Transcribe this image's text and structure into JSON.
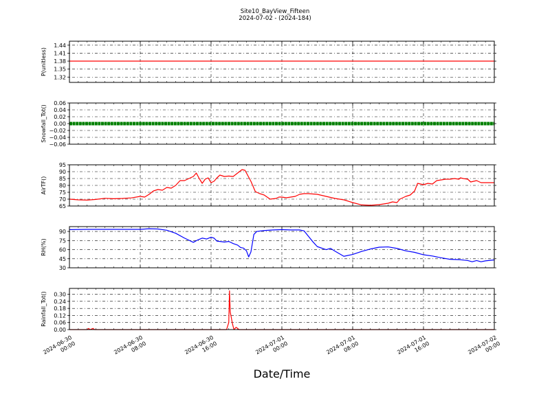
{
  "chart_data": {
    "type": "line",
    "title": "Site10_BayView_Fifteen",
    "subtitle": "2024-07-02 - (2024-184)",
    "xlabel": "Date/Time",
    "grid": true,
    "x_ticks": [
      {
        "value": "2024-06-30 00:00",
        "line1": "2024-06-30",
        "line2": "00:00"
      },
      {
        "value": "2024-06-30 08:00",
        "line1": "2024-06-30",
        "line2": "08:00"
      },
      {
        "value": "2024-06-30 16:00",
        "line1": "2024-06-30",
        "line2": "16:00"
      },
      {
        "value": "2024-07-01 00:00",
        "line1": "2024-07-01",
        "line2": "00:00"
      },
      {
        "value": "2024-07-01 08:00",
        "line1": "2024-07-01",
        "line2": "08:00"
      },
      {
        "value": "2024-07-01 16:00",
        "line1": "2024-07-01",
        "line2": "16:00"
      },
      {
        "value": "2024-07-02 00:00",
        "line1": "2024-07-02",
        "line2": "00:00"
      }
    ],
    "xlim": [
      "2024-06-30 00:00",
      "2024-07-02 00:00"
    ],
    "panels": [
      {
        "ylabel": "P(unitless)",
        "ylim": [
          1.3,
          1.455
        ],
        "yticks": [
          "1.44",
          "1.41",
          "1.38",
          "1.35",
          "1.32"
        ],
        "color": "#ff0000",
        "marker": "line",
        "points": [
          [
            "2024-06-30 00:00",
            1.38
          ],
          [
            "2024-07-02 00:00",
            1.38
          ]
        ]
      },
      {
        "ylabel": "Snowfall_Tot()",
        "ylim": [
          -0.06,
          0.06
        ],
        "yticks": [
          "0.06",
          "0.04",
          "0.02",
          "0.00",
          "−0.02",
          "−0.04",
          "−0.06"
        ],
        "color": "#008000",
        "marker": "dots",
        "points": [
          [
            "2024-06-30 00:00",
            0.0
          ],
          [
            "2024-07-02 00:00",
            0.0
          ]
        ]
      },
      {
        "ylabel": "AirTF()",
        "ylim": [
          65,
          95
        ],
        "yticks": [
          "95",
          "90",
          "85",
          "80",
          "75",
          "70",
          "65"
        ],
        "color": "#ff0000",
        "marker": "line",
        "points": [
          [
            "2024-06-30 00:00",
            70.0
          ],
          [
            "2024-06-30 01:00",
            69.5
          ],
          [
            "2024-06-30 02:00",
            69.3
          ],
          [
            "2024-06-30 03:00",
            69.8
          ],
          [
            "2024-06-30 04:00",
            70.6
          ],
          [
            "2024-06-30 05:00",
            70.3
          ],
          [
            "2024-06-30 06:00",
            70.5
          ],
          [
            "2024-06-30 07:00",
            70.9
          ],
          [
            "2024-06-30 08:00",
            72.0
          ],
          [
            "2024-06-30 08:30",
            71.5
          ],
          [
            "2024-06-30 09:00",
            73.5
          ],
          [
            "2024-06-30 09:30",
            76.0
          ],
          [
            "2024-06-30 10:00",
            77.0
          ],
          [
            "2024-06-30 10:30",
            76.5
          ],
          [
            "2024-06-30 11:00",
            78.5
          ],
          [
            "2024-06-30 11:30",
            78.0
          ],
          [
            "2024-06-30 12:00",
            80.0
          ],
          [
            "2024-06-30 12:30",
            83.5
          ],
          [
            "2024-06-30 13:00",
            83.5
          ],
          [
            "2024-06-30 13:30",
            85.0
          ],
          [
            "2024-06-30 14:00",
            86.5
          ],
          [
            "2024-06-30 14:20",
            89.0
          ],
          [
            "2024-06-30 14:40",
            85.0
          ],
          [
            "2024-06-30 15:00",
            81.5
          ],
          [
            "2024-06-30 15:20",
            84.5
          ],
          [
            "2024-06-30 15:40",
            85.5
          ],
          [
            "2024-06-30 16:00",
            82.0
          ],
          [
            "2024-06-30 16:20",
            83.0
          ],
          [
            "2024-06-30 16:40",
            85.5
          ],
          [
            "2024-06-30 17:00",
            87.5
          ],
          [
            "2024-06-30 17:30",
            86.5
          ],
          [
            "2024-06-30 18:00",
            86.8
          ],
          [
            "2024-06-30 18:30",
            86.5
          ],
          [
            "2024-06-30 19:00",
            89.0
          ],
          [
            "2024-06-30 19:30",
            91.5
          ],
          [
            "2024-06-30 19:50",
            91.0
          ],
          [
            "2024-06-30 20:10",
            87.0
          ],
          [
            "2024-06-30 20:30",
            83.0
          ],
          [
            "2024-06-30 21:00",
            75.5
          ],
          [
            "2024-06-30 21:30",
            74.0
          ],
          [
            "2024-06-30 22:00",
            73.0
          ],
          [
            "2024-06-30 22:20",
            71.5
          ],
          [
            "2024-06-30 22:40",
            70.0
          ],
          [
            "2024-06-30 23:20",
            70.5
          ],
          [
            "2024-06-30 23:40",
            71.5
          ],
          [
            "2024-07-01 00:00",
            71.5
          ],
          [
            "2024-07-01 00:30",
            71.0
          ],
          [
            "2024-07-01 01:00",
            71.5
          ],
          [
            "2024-07-01 01:30",
            72.0
          ],
          [
            "2024-07-01 02:00",
            73.5
          ],
          [
            "2024-07-01 02:30",
            74.0
          ],
          [
            "2024-07-01 03:00",
            74.0
          ],
          [
            "2024-07-01 04:00",
            73.5
          ],
          [
            "2024-07-01 05:00",
            72.0
          ],
          [
            "2024-07-01 06:00",
            70.5
          ],
          [
            "2024-07-01 07:00",
            69.5
          ],
          [
            "2024-07-01 08:00",
            67.5
          ],
          [
            "2024-07-01 09:00",
            65.8
          ],
          [
            "2024-07-01 10:00",
            65.5
          ],
          [
            "2024-07-01 11:00",
            66.0
          ],
          [
            "2024-07-01 12:00",
            67.0
          ],
          [
            "2024-07-01 12:30",
            68.0
          ],
          [
            "2024-07-01 13:00",
            67.5
          ],
          [
            "2024-07-01 13:20",
            70.0
          ],
          [
            "2024-07-01 14:00",
            72.0
          ],
          [
            "2024-07-01 14:30",
            73.0
          ],
          [
            "2024-07-01 15:00",
            76.0
          ],
          [
            "2024-07-01 15:20",
            81.5
          ],
          [
            "2024-07-01 15:40",
            81.0
          ],
          [
            "2024-07-01 16:00",
            80.5
          ],
          [
            "2024-07-01 16:30",
            81.5
          ],
          [
            "2024-07-01 17:00",
            81.0
          ],
          [
            "2024-07-01 17:30",
            83.5
          ],
          [
            "2024-07-01 18:00",
            84.0
          ],
          [
            "2024-07-01 18:30",
            84.5
          ],
          [
            "2024-07-01 19:00",
            84.5
          ],
          [
            "2024-07-01 19:30",
            85.0
          ],
          [
            "2024-07-01 20:00",
            84.5
          ],
          [
            "2024-07-01 20:10",
            85.5
          ],
          [
            "2024-07-01 20:30",
            85.0
          ],
          [
            "2024-07-01 21:00",
            84.5
          ],
          [
            "2024-07-01 21:20",
            82.5
          ],
          [
            "2024-07-01 22:00",
            83.5
          ],
          [
            "2024-07-01 22:30",
            82.0
          ],
          [
            "2024-07-01 23:00",
            82.0
          ],
          [
            "2024-07-02 00:00",
            82.0
          ]
        ]
      },
      {
        "ylabel": "RH(%)",
        "ylim": [
          30,
          98
        ],
        "yticks": [
          "90",
          "75",
          "60",
          "45",
          "30"
        ],
        "color": "#0000ff",
        "marker": "line",
        "points": [
          [
            "2024-06-30 00:00",
            93.0
          ],
          [
            "2024-06-30 02:00",
            93.5
          ],
          [
            "2024-06-30 04:00",
            93.5
          ],
          [
            "2024-06-30 06:00",
            93.5
          ],
          [
            "2024-06-30 08:00",
            93.5
          ],
          [
            "2024-06-30 09:00",
            94.5
          ],
          [
            "2024-06-30 10:00",
            94.0
          ],
          [
            "2024-06-30 11:00",
            92.0
          ],
          [
            "2024-06-30 12:00",
            87.0
          ],
          [
            "2024-06-30 13:00",
            79.0
          ],
          [
            "2024-06-30 14:00",
            72.0
          ],
          [
            "2024-06-30 14:30",
            76.0
          ],
          [
            "2024-06-30 15:00",
            79.0
          ],
          [
            "2024-06-30 15:30",
            77.5
          ],
          [
            "2024-06-30 16:00",
            80.5
          ],
          [
            "2024-06-30 16:20",
            79.0
          ],
          [
            "2024-06-30 16:40",
            74.0
          ],
          [
            "2024-06-30 17:00",
            73.5
          ],
          [
            "2024-06-30 17:30",
            72.5
          ],
          [
            "2024-06-30 18:00",
            73.5
          ],
          [
            "2024-06-30 18:30",
            70.0
          ],
          [
            "2024-06-30 19:00",
            67.5
          ],
          [
            "2024-06-30 19:20",
            63.5
          ],
          [
            "2024-06-30 19:40",
            62.5
          ],
          [
            "2024-06-30 20:00",
            58.0
          ],
          [
            "2024-06-30 20:15",
            48.0
          ],
          [
            "2024-06-30 20:30",
            56.0
          ],
          [
            "2024-06-30 20:50",
            85.0
          ],
          [
            "2024-06-30 21:10",
            90.0
          ],
          [
            "2024-06-30 22:00",
            91.5
          ],
          [
            "2024-06-30 23:00",
            92.5
          ],
          [
            "2024-07-01 00:00",
            93.0
          ],
          [
            "2024-07-01 01:00",
            92.5
          ],
          [
            "2024-07-01 02:00",
            92.5
          ],
          [
            "2024-07-01 02:30",
            91.0
          ],
          [
            "2024-07-01 03:00",
            82.0
          ],
          [
            "2024-07-01 03:30",
            73.0
          ],
          [
            "2024-07-01 04:00",
            65.0
          ],
          [
            "2024-07-01 05:00",
            60.0
          ],
          [
            "2024-07-01 05:30",
            62.0
          ],
          [
            "2024-07-01 06:00",
            57.5
          ],
          [
            "2024-07-01 07:00",
            49.0
          ],
          [
            "2024-07-01 08:00",
            52.0
          ],
          [
            "2024-07-01 09:00",
            57.0
          ],
          [
            "2024-07-01 10:00",
            61.0
          ],
          [
            "2024-07-01 11:00",
            64.0
          ],
          [
            "2024-07-01 12:00",
            64.5
          ],
          [
            "2024-07-01 13:00",
            62.0
          ],
          [
            "2024-07-01 14:00",
            58.0
          ],
          [
            "2024-07-01 15:00",
            55.5
          ],
          [
            "2024-07-01 16:00",
            51.5
          ],
          [
            "2024-07-01 17:00",
            49.5
          ],
          [
            "2024-07-01 18:00",
            46.5
          ],
          [
            "2024-07-01 19:00",
            44.0
          ],
          [
            "2024-07-01 20:00",
            43.5
          ],
          [
            "2024-07-01 21:00",
            42.0
          ],
          [
            "2024-07-01 21:30",
            40.0
          ],
          [
            "2024-07-01 22:00",
            42.0
          ],
          [
            "2024-07-01 22:30",
            40.0
          ],
          [
            "2024-07-01 23:00",
            41.5
          ],
          [
            "2024-07-02 00:00",
            43.0
          ]
        ]
      },
      {
        "ylabel": "Rainfall_Tot()",
        "ylim": [
          0.0,
          0.35
        ],
        "yticks": [
          "0.30",
          "0.24",
          "0.18",
          "0.12",
          "0.06",
          "0.00"
        ],
        "color": "#ff0000",
        "marker": "line",
        "points": [
          [
            "2024-06-30 00:00",
            0.0
          ],
          [
            "2024-06-30 02:00",
            0.0
          ],
          [
            "2024-06-30 02:10",
            0.01
          ],
          [
            "2024-06-30 02:20",
            0.0
          ],
          [
            "2024-06-30 02:40",
            0.01
          ],
          [
            "2024-06-30 02:50",
            0.0
          ],
          [
            "2024-06-30 17:30",
            0.0
          ],
          [
            "2024-06-30 17:45",
            0.0
          ],
          [
            "2024-06-30 18:00",
            0.06
          ],
          [
            "2024-06-30 18:05",
            0.33
          ],
          [
            "2024-06-30 18:10",
            0.15
          ],
          [
            "2024-06-30 18:25",
            0.05
          ],
          [
            "2024-06-30 18:35",
            0.0
          ],
          [
            "2024-06-30 18:50",
            0.02
          ],
          [
            "2024-06-30 19:00",
            0.01
          ],
          [
            "2024-06-30 19:10",
            0.0
          ],
          [
            "2024-07-02 00:00",
            0.0
          ]
        ]
      }
    ]
  }
}
